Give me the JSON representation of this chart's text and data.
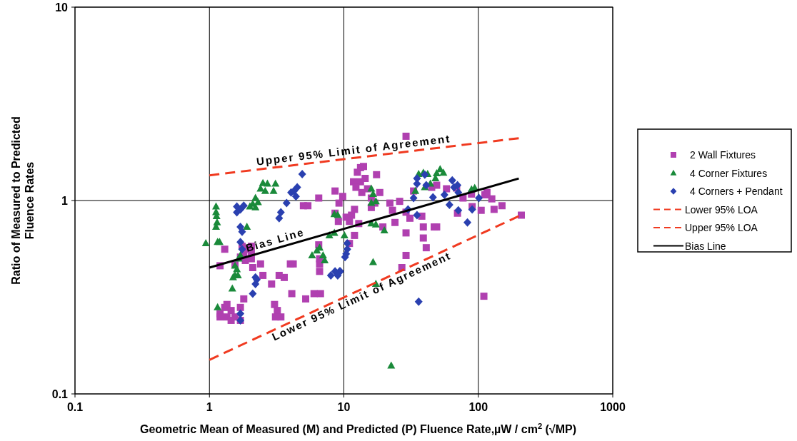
{
  "chart_data": {
    "type": "scatter",
    "xlabel": "Geometric Mean of Measured (M) and Predicted (P) Fluence Rate,µW / cm$^{2}$ (√MP)",
    "ylabel": "Ratio of Measured to Predicted Fluence Rates",
    "log": "xy",
    "xlim": [
      0.1,
      1000
    ],
    "ylim": [
      0.1,
      10
    ],
    "xticks": [
      0.1,
      1,
      10,
      100,
      1000
    ],
    "yticks": [
      0.1,
      1,
      10
    ],
    "grid": true,
    "legend": "right",
    "series": [
      {
        "name": "2 Wall Fixtures",
        "color": "#b040b0",
        "marker": "square",
        "x": [
          1.2,
          1.3,
          1.2,
          1.3,
          1.35,
          1.45,
          1.35,
          1.55,
          1.2,
          1.45,
          1.7,
          1.8,
          1.7,
          1.75,
          1.8,
          1.85,
          1.95,
          2.05,
          2.05,
          2.05,
          2.1,
          1.7,
          1.55,
          2.9,
          2.5,
          2.4,
          3.3,
          3.6,
          4,
          4.2,
          4.1,
          3.05,
          3.2,
          3.4,
          3.1,
          5.2,
          6,
          6.7,
          6.6,
          6.6,
          6.6,
          6.5,
          5,
          5.4,
          6.5,
          8.6,
          9.2,
          8.6,
          9.1,
          9.8,
          10.4,
          11,
          11.4,
          12,
          12.6,
          13.3,
          14,
          14.4,
          13.3,
          11.8,
          12.3,
          15,
          13.6,
          16,
          16,
          17,
          18.5,
          17.5,
          12.9,
          12,
          11,
          19.5,
          24,
          29,
          29,
          29,
          27,
          29,
          23,
          22,
          26,
          31,
          38,
          39,
          39,
          41,
          47,
          49,
          49,
          70,
          77,
          90,
          105,
          112,
          116,
          126,
          131,
          150,
          110,
          209,
          58,
          69,
          89,
          45,
          33
        ],
        "values": [
          0.46,
          0.56,
          0.26,
          0.28,
          0.29,
          0.27,
          0.25,
          0.25,
          0.25,
          0.24,
          0.28,
          0.31,
          0.24,
          0.58,
          0.53,
          0.49,
          0.56,
          0.58,
          0.54,
          0.5,
          0.45,
          0.51,
          0.47,
          0.37,
          0.41,
          0.47,
          0.41,
          0.4,
          0.47,
          0.47,
          0.33,
          0.29,
          0.27,
          0.25,
          0.25,
          0.31,
          0.33,
          0.33,
          0.5,
          0.47,
          0.43,
          0.59,
          0.94,
          0.94,
          1.03,
          1.12,
          0.97,
          0.86,
          0.78,
          1.05,
          0.82,
          0.78,
          0.84,
          0.9,
          1.4,
          1.48,
          1.5,
          1.3,
          1.25,
          1.25,
          1.17,
          1.15,
          1.1,
          1.03,
          0.92,
          0.97,
          1.1,
          1.36,
          0.76,
          0.66,
          0.6,
          0.73,
          0.77,
          0.87,
          0.68,
          0.52,
          0.45,
          2.15,
          0.89,
          0.97,
          0.99,
          0.81,
          0.83,
          0.73,
          0.64,
          0.57,
          0.73,
          0.73,
          1.2,
          0.86,
          1.03,
          0.93,
          0.89,
          1.07,
          1.1,
          1.02,
          0.9,
          0.94,
          0.32,
          0.84,
          1.15,
          1.16,
          1.08,
          1.17,
          1.12
        ]
      },
      {
        "name": "4 Corner Fixtures",
        "color": "#1a8a3a",
        "marker": "triangle",
        "x": [
          0.94,
          1.12,
          1.12,
          1.13,
          1.14,
          1.12,
          1.15,
          1.19,
          1.15,
          1.48,
          1.55,
          1.6,
          1.55,
          1.63,
          1.5,
          1.65,
          1.7,
          1.9,
          2,
          2.2,
          2.3,
          2.4,
          2.5,
          2.6,
          2.7,
          3,
          3.1,
          2.2,
          2.1,
          5.8,
          6.3,
          6.6,
          7,
          7.2,
          7.8,
          8.5,
          8.5,
          9,
          10.1,
          16,
          16.5,
          16,
          17.3,
          16,
          17.3,
          20,
          16.5,
          17.3,
          22.5,
          36,
          39,
          42,
          40,
          44,
          49,
          52,
          55,
          48,
          34,
          89,
          94
        ],
        "values": [
          0.6,
          0.87,
          0.93,
          0.83,
          0.77,
          0.73,
          0.61,
          0.61,
          0.28,
          0.35,
          0.46,
          0.44,
          0.41,
          0.41,
          0.4,
          0.5,
          0.52,
          0.73,
          0.93,
          1.03,
          0.98,
          1.15,
          1.23,
          1.12,
          1.22,
          1.12,
          1.22,
          0.92,
          0.96,
          0.52,
          0.55,
          0.57,
          0.52,
          0.49,
          0.66,
          0.68,
          0.85,
          0.84,
          0.66,
          1.15,
          1.08,
          0.97,
          0.99,
          0.76,
          0.75,
          0.7,
          0.48,
          0.37,
          0.14,
          1.37,
          1.39,
          1.37,
          1.17,
          1.22,
          1.38,
          1.45,
          1.39,
          1.3,
          1.12,
          1.14,
          1.16
        ]
      },
      {
        "name": "4 Corners + Pendant",
        "color": "#2a40b0",
        "marker": "diamond",
        "x": [
          1.6,
          1.7,
          1.8,
          1.6,
          1.7,
          1.75,
          1.7,
          1.75,
          2.2,
          2.25,
          2.2,
          2.1,
          1.7,
          1.7,
          3.3,
          3.4,
          3.75,
          4.05,
          4.25,
          4.4,
          4.5,
          4.9,
          8,
          8.6,
          9.4,
          10.6,
          10.4,
          10.2,
          10.6,
          9.3,
          9,
          35,
          35,
          40,
          41,
          33,
          35,
          30,
          46,
          56,
          61,
          64,
          66,
          70,
          71,
          71,
          83,
          90,
          101,
          36
        ],
        "values": [
          0.87,
          0.9,
          0.94,
          0.93,
          0.73,
          0.69,
          0.61,
          0.56,
          0.4,
          0.39,
          0.37,
          0.33,
          0.26,
          0.24,
          0.81,
          0.87,
          0.97,
          1.1,
          1.12,
          1.05,
          1.17,
          1.37,
          0.41,
          0.43,
          0.43,
          0.56,
          0.53,
          0.51,
          0.6,
          0.43,
          0.41,
          1.22,
          1.3,
          1.36,
          1.2,
          1.03,
          0.84,
          0.9,
          1.04,
          1.07,
          0.95,
          1.27,
          1.17,
          1.2,
          1.1,
          0.89,
          0.77,
          0.9,
          1.03,
          0.3
        ]
      },
      {
        "name": "Lower 95% LOA",
        "type": "line",
        "color": "#f03a20",
        "line_style": "dashed",
        "x": [
          1,
          200
        ],
        "values": [
          0.15,
          0.83
        ]
      },
      {
        "name": "Upper 95% LOA",
        "type": "line",
        "color": "#f03a20",
        "line_style": "dashed",
        "x": [
          1,
          200
        ],
        "values": [
          1.35,
          2.1
        ]
      },
      {
        "name": "Bias Line",
        "type": "line",
        "color": "#000000",
        "line_style": "solid",
        "x": [
          1,
          200
        ],
        "values": [
          0.45,
          1.3
        ]
      }
    ],
    "annotations": [
      {
        "text": "Upper 95% Limit of Agreement",
        "x": 12,
        "y": 1.66
      },
      {
        "text": "Bias Line",
        "x": 3.2,
        "y": 0.57
      },
      {
        "text": "Lower 95% Limit of Agreement",
        "x": 13,
        "y": 0.34
      }
    ]
  }
}
